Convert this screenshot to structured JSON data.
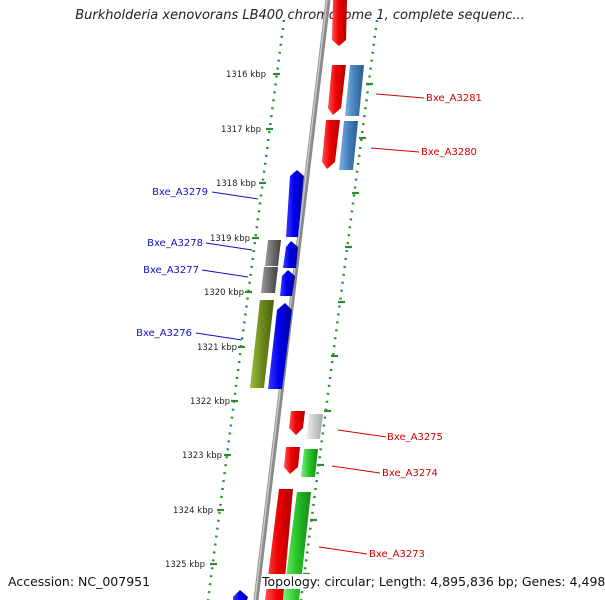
{
  "title": "Burkholderia xenovorans LB400 chromosome 1, complete sequenc...",
  "accession_label": "Accession: NC_007951",
  "topology_label": "Topology: circular; Length: 4,895,836 bp; Genes: 4,498",
  "colors": {
    "ruler": "#2e8b2e",
    "backbone": "#8a8a8a",
    "label_left": "#1010c0",
    "label_right": "#d00000"
  },
  "ruler_labels": [
    "1316 kbp",
    "1317 kbp",
    "1318 kbp",
    "1319 kbp",
    "1320 kbp",
    "1321 kbp",
    "1322 kbp",
    "1323 kbp",
    "1324 kbp",
    "1325 kbp"
  ],
  "gene_labels_left": [
    "Bxe_A3279",
    "Bxe_A3278",
    "Bxe_A3277",
    "Bxe_A3276"
  ],
  "gene_labels_right": [
    "Bxe_A3281",
    "Bxe_A3280",
    "Bxe_A3275",
    "Bxe_A3274",
    "Bxe_A3273"
  ]
}
